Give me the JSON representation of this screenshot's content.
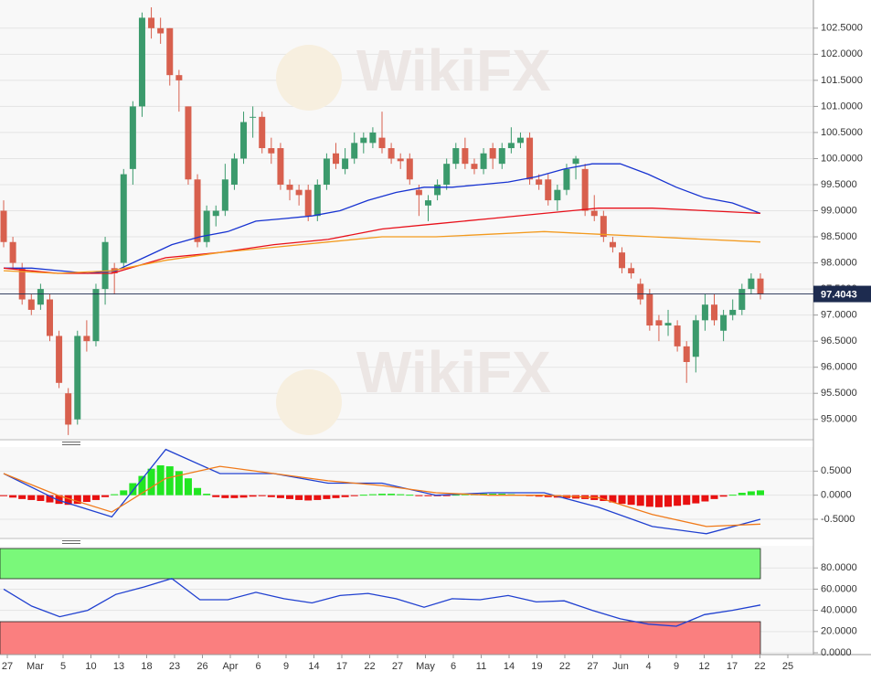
{
  "chart_data": [
    {
      "type": "candlestick",
      "watermark": "WikiFX",
      "up_color": "#3b9a6c",
      "down_color": "#d8604e",
      "candles": [
        [
          99.0,
          99.2,
          98.3,
          98.4
        ],
        [
          98.4,
          98.5,
          97.9,
          98.0
        ],
        [
          97.9,
          98.0,
          97.2,
          97.3
        ],
        [
          97.3,
          97.4,
          97.0,
          97.1
        ],
        [
          97.2,
          97.6,
          97.1,
          97.5
        ],
        [
          97.3,
          97.4,
          96.5,
          96.6
        ],
        [
          96.6,
          96.7,
          95.6,
          95.7
        ],
        [
          95.5,
          95.6,
          94.7,
          94.9
        ],
        [
          95.0,
          96.7,
          94.9,
          96.6
        ],
        [
          96.6,
          96.9,
          96.3,
          96.5
        ],
        [
          96.5,
          97.6,
          96.4,
          97.5
        ],
        [
          97.5,
          98.5,
          97.2,
          98.4
        ],
        [
          97.9,
          98.0,
          97.4,
          97.8
        ],
        [
          98.0,
          99.8,
          97.9,
          99.7
        ],
        [
          99.8,
          101.1,
          99.5,
          101.0
        ],
        [
          101.0,
          102.8,
          100.8,
          102.7
        ],
        [
          102.7,
          102.9,
          102.3,
          102.5
        ],
        [
          102.5,
          102.7,
          102.2,
          102.4
        ],
        [
          102.5,
          102.5,
          101.4,
          101.6
        ],
        [
          101.6,
          101.7,
          100.9,
          101.5
        ],
        [
          101.0,
          101.0,
          99.5,
          99.6
        ],
        [
          99.6,
          99.7,
          98.3,
          98.4
        ],
        [
          98.4,
          99.1,
          98.3,
          99.0
        ],
        [
          98.9,
          99.1,
          98.7,
          99.0
        ],
        [
          99.0,
          99.9,
          98.9,
          99.6
        ],
        [
          99.5,
          100.1,
          99.4,
          100.0
        ],
        [
          100.0,
          100.9,
          99.9,
          100.7
        ],
        [
          100.8,
          101.0,
          100.4,
          100.8
        ],
        [
          100.8,
          100.9,
          100.1,
          100.2
        ],
        [
          100.2,
          100.4,
          99.9,
          100.1
        ],
        [
          100.2,
          100.3,
          99.4,
          99.5
        ],
        [
          99.5,
          99.6,
          99.2,
          99.4
        ],
        [
          99.4,
          99.5,
          99.1,
          99.3
        ],
        [
          99.4,
          99.5,
          98.8,
          98.9
        ],
        [
          98.9,
          99.6,
          98.8,
          99.5
        ],
        [
          99.5,
          100.1,
          99.4,
          100.0
        ],
        [
          100.1,
          100.3,
          99.8,
          99.9
        ],
        [
          99.8,
          100.2,
          99.7,
          100.0
        ],
        [
          100.0,
          100.5,
          99.9,
          100.3
        ],
        [
          100.3,
          100.5,
          100.1,
          100.4
        ],
        [
          100.3,
          100.6,
          100.2,
          100.5
        ],
        [
          100.4,
          100.9,
          100.1,
          100.2
        ],
        [
          100.2,
          100.3,
          99.9,
          100.0
        ],
        [
          100.0,
          100.1,
          99.8,
          99.95
        ],
        [
          100.0,
          100.1,
          99.5,
          99.6
        ],
        [
          99.4,
          99.5,
          98.9,
          99.3
        ],
        [
          99.1,
          99.3,
          98.8,
          99.2
        ],
        [
          99.3,
          99.6,
          99.2,
          99.5
        ],
        [
          99.5,
          100.0,
          99.4,
          99.9
        ],
        [
          99.9,
          100.3,
          99.8,
          100.2
        ],
        [
          100.2,
          100.4,
          99.8,
          99.9
        ],
        [
          99.9,
          100.0,
          99.7,
          99.8
        ],
        [
          99.8,
          100.2,
          99.7,
          100.1
        ],
        [
          100.2,
          100.3,
          99.8,
          100.0
        ],
        [
          99.9,
          100.3,
          99.8,
          100.2
        ],
        [
          100.2,
          100.6,
          100.1,
          100.3
        ],
        [
          100.3,
          100.5,
          100.2,
          100.4
        ],
        [
          100.4,
          100.5,
          99.5,
          99.6
        ],
        [
          99.6,
          99.7,
          99.4,
          99.5
        ],
        [
          99.6,
          99.7,
          99.1,
          99.2
        ],
        [
          99.2,
          99.5,
          99.0,
          99.4
        ],
        [
          99.4,
          99.9,
          99.3,
          99.8
        ],
        [
          99.9,
          100.05,
          99.6,
          100.0
        ],
        [
          99.8,
          99.9,
          98.9,
          99.0
        ],
        [
          99.0,
          99.3,
          98.8,
          98.9
        ],
        [
          98.9,
          99.0,
          98.4,
          98.5
        ],
        [
          98.4,
          98.5,
          98.2,
          98.3
        ],
        [
          98.2,
          98.3,
          97.8,
          97.9
        ],
        [
          97.9,
          98.0,
          97.7,
          97.8
        ],
        [
          97.6,
          97.7,
          97.2,
          97.3
        ],
        [
          97.4,
          97.5,
          96.7,
          96.8
        ],
        [
          96.9,
          97.0,
          96.5,
          96.8
        ],
        [
          96.8,
          97.1,
          96.6,
          96.85
        ],
        [
          96.8,
          96.9,
          96.3,
          96.4
        ],
        [
          96.4,
          96.5,
          95.7,
          96.1
        ],
        [
          96.2,
          97.0,
          95.9,
          96.9
        ],
        [
          96.9,
          97.4,
          96.7,
          97.2
        ],
        [
          97.2,
          97.4,
          96.8,
          96.9
        ],
        [
          96.7,
          97.1,
          96.5,
          97.0
        ],
        [
          97.0,
          97.3,
          96.9,
          97.1
        ],
        [
          97.1,
          97.6,
          97.0,
          97.5
        ],
        [
          97.5,
          97.8,
          97.4,
          97.7
        ],
        [
          97.7,
          97.8,
          97.3,
          97.4
        ]
      ],
      "lines": [
        {
          "color": "#1733d1",
          "values": [
            97.9,
            97.9,
            97.85,
            97.8,
            97.85,
            98.1,
            98.35,
            98.5,
            98.6,
            98.8,
            98.85,
            98.9,
            99.0,
            99.2,
            99.35,
            99.45,
            99.45,
            99.5,
            99.55,
            99.65,
            99.8,
            99.9,
            99.9,
            99.7,
            99.45,
            99.25,
            99.15,
            98.95
          ]
        },
        {
          "color": "#e8101a",
          "values": [
            97.9,
            97.8,
            97.8,
            98.1,
            98.2,
            98.35,
            98.45,
            98.65,
            98.75,
            98.85,
            98.95,
            99.05,
            99.05,
            99.0,
            98.95
          ]
        },
        {
          "color": "#f39a1e",
          "values": [
            97.85,
            97.8,
            97.85,
            98.05,
            98.2,
            98.3,
            98.4,
            98.5,
            98.5,
            98.55,
            98.6,
            98.55,
            98.5,
            98.45,
            98.4
          ]
        }
      ],
      "last_price": 97.4043,
      "ylim": [
        94.61,
        103.04
      ],
      "yticks": [
        {
          "value": 95,
          "label": "95.0000"
        },
        {
          "value": 95.5,
          "label": "95.5000"
        },
        {
          "value": 96,
          "label": "96.0000"
        },
        {
          "value": 96.5,
          "label": "96.5000"
        },
        {
          "value": 97,
          "label": "97.0000"
        },
        {
          "value": 97.5,
          "label": "97.5000"
        },
        {
          "value": 98,
          "label": "98.0000"
        },
        {
          "value": 98.5,
          "label": "98.5000"
        },
        {
          "value": 99,
          "label": "99.0000"
        },
        {
          "value": 99.5,
          "label": "99.5000"
        },
        {
          "value": 100,
          "label": "100.0000"
        },
        {
          "value": 100.5,
          "label": "100.5000"
        },
        {
          "value": 101,
          "label": "101.0000"
        },
        {
          "value": 101.5,
          "label": "101.5000"
        },
        {
          "value": 102,
          "label": "102.0000"
        },
        {
          "value": 102.5,
          "label": "102.5000"
        }
      ]
    },
    {
      "type": "macd",
      "up_color": "#22e622",
      "down_color": "#e81010",
      "histogram": [
        -0.02,
        -0.05,
        -0.08,
        -0.1,
        -0.12,
        -0.15,
        -0.18,
        -0.2,
        -0.18,
        -0.14,
        -0.1,
        -0.04,
        0.02,
        0.1,
        0.25,
        0.4,
        0.55,
        0.62,
        0.6,
        0.5,
        0.35,
        0.15,
        0.03,
        -0.04,
        -0.06,
        -0.06,
        -0.05,
        -0.03,
        -0.02,
        -0.04,
        -0.06,
        -0.08,
        -0.1,
        -0.11,
        -0.1,
        -0.08,
        -0.06,
        -0.04,
        -0.02,
        0.01,
        0.02,
        0.03,
        0.03,
        0.02,
        0.01,
        -0.01,
        -0.02,
        -0.02,
        -0.01,
        0.01,
        0.02,
        0.02,
        0.03,
        0.03,
        0.03,
        0.02,
        0.01,
        -0.01,
        -0.03,
        -0.04,
        -0.05,
        -0.06,
        -0.07,
        -0.08,
        -0.1,
        -0.12,
        -0.15,
        -0.18,
        -0.2,
        -0.22,
        -0.24,
        -0.25,
        -0.24,
        -0.22,
        -0.2,
        -0.17,
        -0.13,
        -0.08,
        -0.03,
        0.01,
        0.05,
        0.08,
        0.1
      ],
      "lines": [
        {
          "color": "#2040d0",
          "values": [
            0.45,
            -0.1,
            -0.45,
            0.95,
            0.45,
            0.45,
            0.25,
            0.25,
            0.0,
            0.05,
            0.05,
            -0.25,
            -0.65,
            -0.8,
            -0.5
          ]
        },
        {
          "color": "#f07a1a",
          "values": [
            0.45,
            0.0,
            -0.35,
            0.35,
            0.6,
            0.45,
            0.3,
            0.2,
            0.05,
            0.0,
            0.0,
            -0.05,
            -0.4,
            -0.65,
            -0.6
          ]
        }
      ],
      "ylim": [
        -0.88,
        1.0
      ],
      "yticks": [
        {
          "value": -0.5,
          "label": "-0.5000"
        },
        {
          "value": 0,
          "label": "0.0000"
        },
        {
          "value": 0.5,
          "label": "0.5000"
        }
      ]
    },
    {
      "type": "rsi",
      "lines": [
        {
          "color": "#2040d0",
          "values": [
            60,
            44,
            34,
            40,
            55,
            62,
            70,
            50,
            50,
            57,
            51,
            47,
            54,
            56,
            51,
            43,
            51,
            50,
            54,
            48,
            49,
            40,
            32,
            27,
            25,
            36,
            40,
            45
          ]
        }
      ],
      "ylim": [
        -1.7,
        100.9
      ],
      "yticks": [
        {
          "value": 0,
          "label": "0.0000"
        },
        {
          "value": 20,
          "label": "20.0000"
        },
        {
          "value": 40,
          "label": "40.0000"
        },
        {
          "value": 60,
          "label": "60.0000"
        },
        {
          "value": 80,
          "label": "80.0000"
        }
      ],
      "categories": [
        "27",
        "Mar",
        "5",
        "10",
        "13",
        "18",
        "23",
        "26",
        "Apr",
        "6",
        "9",
        "14",
        "17",
        "22",
        "27",
        "May",
        "6",
        "11",
        "14",
        "19",
        "22",
        "27",
        "Jun",
        "4",
        "9",
        "12",
        "17",
        "22",
        "25"
      ]
    }
  ]
}
